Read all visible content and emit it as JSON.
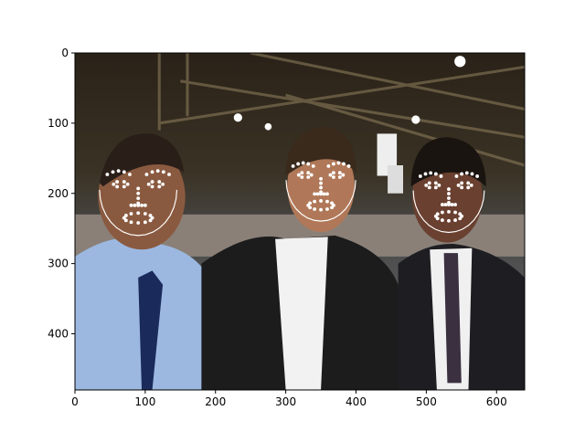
{
  "image_axes": {
    "xlim": [
      0,
      640
    ],
    "ylim": [
      480,
      0
    ],
    "xticks": [
      0,
      100,
      200,
      300,
      400,
      500,
      600
    ],
    "yticks": [
      0,
      100,
      200,
      300,
      400
    ]
  }
}
